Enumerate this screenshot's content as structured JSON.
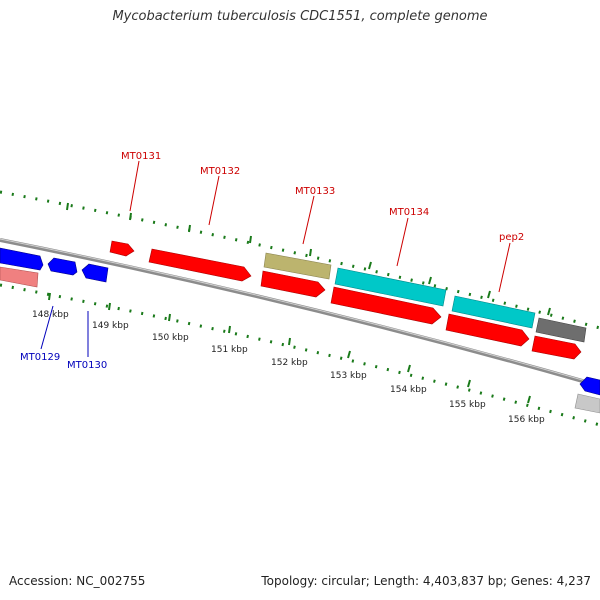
{
  "title": "Mycobacterium tuberculosis CDC1551, complete genome",
  "footer": {
    "accession": "Accession: NC_002755",
    "stats": "Topology: circular; Length: 4,403,837 bp; Genes: 4,237"
  },
  "colors": {
    "backbone": "#8c8c8c",
    "tick": "#1a7a1a",
    "kbp_label": "#222222",
    "forward_label": "#cc0000",
    "reverse_label": "#0000bb",
    "gene_red": "#ff0000",
    "gene_blue": "#0000ff",
    "gene_cyan": "#00c8c8",
    "gene_olive": "#bcb46e",
    "gene_gray": "#6e6e6e",
    "gene_salmon": "#f08080",
    "gene_lightgray": "#c8c8c8"
  },
  "kbp_ticks": [
    {
      "label": "148 kbp"
    },
    {
      "label": "149 kbp"
    },
    {
      "label": "150 kbp"
    },
    {
      "label": "151 kbp"
    },
    {
      "label": "152 kbp"
    },
    {
      "label": "153 kbp"
    },
    {
      "label": "154 kbp"
    },
    {
      "label": "155 kbp"
    },
    {
      "label": "156 kbp"
    }
  ],
  "gene_labels": [
    {
      "text": "MT0131",
      "strand": "forward"
    },
    {
      "text": "MT0132",
      "strand": "forward"
    },
    {
      "text": "MT0133",
      "strand": "forward"
    },
    {
      "text": "MT0134",
      "strand": "forward"
    },
    {
      "text": "pep2",
      "strand": "forward"
    },
    {
      "text": "MT0129",
      "strand": "reverse"
    },
    {
      "text": "MT0130",
      "strand": "reverse"
    }
  ]
}
